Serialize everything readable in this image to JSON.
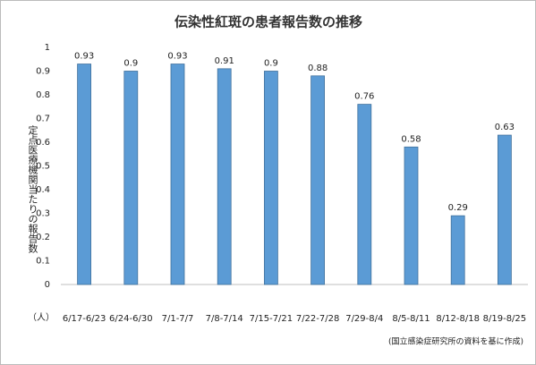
{
  "chart_data": {
    "type": "bar",
    "title": "伝染性紅斑の患者報告数の推移",
    "y_label": "定点医療機関当たりの報告数",
    "unit_label": "（人）",
    "note": "(国立感染症研究所の資料を基に作成)",
    "categories": [
      "6/17-6/23",
      "6/24-6/30",
      "7/1-7/7",
      "7/8-7/14",
      "7/15-7/21",
      "7/22-7/28",
      "7/29-8/4",
      "8/5-8/11",
      "8/12-8/18",
      "8/19-8/25"
    ],
    "values": [
      0.93,
      0.9,
      0.93,
      0.91,
      0.9,
      0.88,
      0.76,
      0.58,
      0.29,
      0.63
    ],
    "color": "#5b9bd5",
    "ylim": [
      0,
      1
    ],
    "yticks": [
      0,
      0.1,
      0.2,
      0.3,
      0.4,
      0.5,
      0.6,
      0.7,
      0.8,
      0.9,
      1
    ],
    "grid": false
  }
}
